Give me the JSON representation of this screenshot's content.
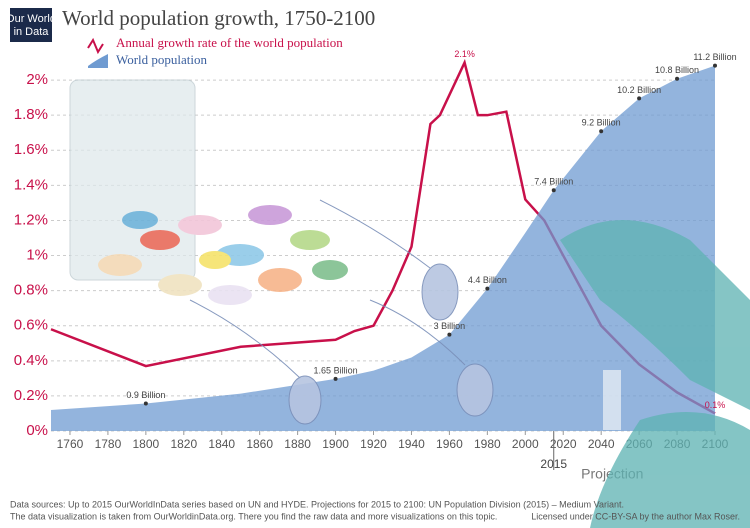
{
  "chart_data": {
    "type": "line-area",
    "title": "World population growth, 1750-2100",
    "logo": [
      "Our World",
      "in Data"
    ],
    "series": [
      {
        "name": "Annual growth rate of the world population",
        "color": "#c8104a",
        "axis": "y",
        "x": [
          1750,
          1800,
          1850,
          1900,
          1910,
          1920,
          1930,
          1940,
          1950,
          1955,
          1968,
          1975,
          1980,
          1990,
          2000,
          2010,
          2020,
          2040,
          2060,
          2080,
          2100
        ],
        "values": [
          0.58,
          0.37,
          0.48,
          0.52,
          0.57,
          0.6,
          0.8,
          1.05,
          1.75,
          1.8,
          2.1,
          1.8,
          1.8,
          1.82,
          1.32,
          1.2,
          1.0,
          0.6,
          0.38,
          0.22,
          0.1
        ],
        "value_labels": [
          null,
          null,
          null,
          null,
          null,
          null,
          null,
          null,
          null,
          null,
          "2.1%",
          null,
          null,
          null,
          null,
          null,
          null,
          null,
          null,
          null,
          "0.1%"
        ]
      },
      {
        "name": "World population",
        "color": "#6f9bd1",
        "axis": "y2",
        "x": [
          1750,
          1800,
          1850,
          1900,
          1920,
          1940,
          1960,
          1980,
          2000,
          2015,
          2040,
          2060,
          2080,
          2100
        ],
        "values": [
          0.7,
          0.9,
          1.2,
          1.65,
          1.9,
          2.3,
          3,
          4.4,
          6.1,
          7.4,
          9.2,
          10.2,
          10.8,
          11.2
        ],
        "value_labels": [
          null,
          "0.9 Billion",
          null,
          "1.65 Billion",
          null,
          null,
          "3 Billion",
          "4.4 Billion",
          null,
          "7.4 Billion",
          "9.2 Billion",
          "10.2 Billion",
          "10.8 Billion",
          "11.2 Billion"
        ]
      }
    ],
    "xlim": [
      1750,
      2100
    ],
    "xticks": [
      1760,
      1780,
      1800,
      1820,
      1840,
      1860,
      1880,
      1900,
      1920,
      1940,
      1960,
      1980,
      2000,
      2020,
      2040,
      2060,
      2080,
      2100
    ],
    "ylim": [
      0,
      2.2
    ],
    "yticks": [
      {
        "value": 0,
        "label": "0%"
      },
      {
        "value": 0.2,
        "label": "0.2%"
      },
      {
        "value": 0.4,
        "label": "0.4%"
      },
      {
        "value": 0.6,
        "label": "0.6%"
      },
      {
        "value": 0.8,
        "label": "0.8%"
      },
      {
        "value": 1,
        "label": "1%"
      },
      {
        "value": 1.2,
        "label": "1.2%"
      },
      {
        "value": 1.4,
        "label": "1.4%"
      },
      {
        "value": 1.6,
        "label": "1.6%"
      },
      {
        "value": 1.8,
        "label": "1.8%"
      },
      {
        "value": 2,
        "label": "2%"
      }
    ],
    "y2lim": [
      0,
      13.2
    ],
    "grid": true,
    "annotations": [
      {
        "x": 2015,
        "label": "2015"
      },
      {
        "x": 2040,
        "label": "Projection"
      }
    ],
    "source_note": [
      "Data sources:  Up to 2015 OurWorldInData series based on UN and HYDE. Projections for 2015 to 2100: UN Population Division (2015) – Medium Variant.",
      "The data visualization is taken from OurWorldinData.org. There you find the raw data and more visualizations on this topic."
    ],
    "license": "Licensed under CC-BY-SA by the author Max Roser."
  }
}
